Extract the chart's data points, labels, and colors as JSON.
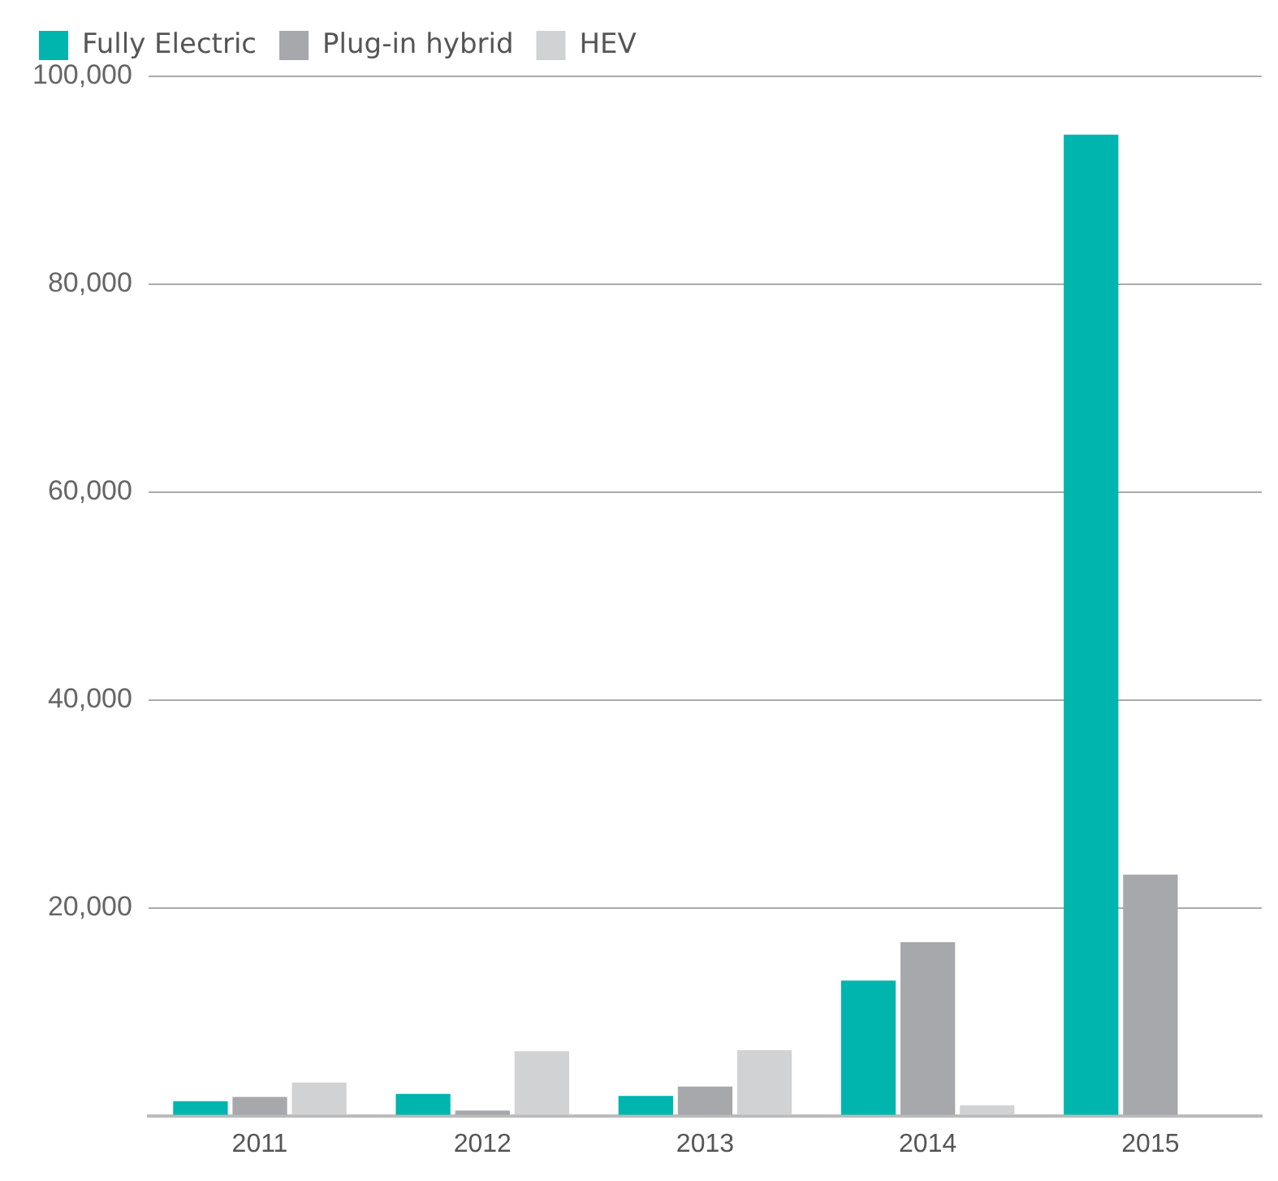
{
  "chart_data": {
    "type": "bar",
    "categories": [
      "2011",
      "2012",
      "2013",
      "2014",
      "2015"
    ],
    "series": [
      {
        "name": "Fully Electric",
        "color": "#00b5ad",
        "values": [
          1400,
          2100,
          1900,
          13000,
          94400
        ]
      },
      {
        "name": "Plug-in hybrid",
        "color": "#a7a8ac",
        "values": [
          1800,
          500,
          2800,
          16700,
          23200
        ]
      },
      {
        "name": "HEV",
        "color": "#d1d2d4",
        "values": [
          3200,
          6200,
          6300,
          1000,
          null
        ]
      }
    ],
    "ylim": [
      0,
      100000
    ],
    "yticks": [
      {
        "value": 0,
        "label": null
      },
      {
        "value": 20000,
        "label": "20,000"
      },
      {
        "value": 40000,
        "label": "40,000"
      },
      {
        "value": 60000,
        "label": "60,000"
      },
      {
        "value": 80000,
        "label": "80,000"
      },
      {
        "value": 100000,
        "label": "100,000"
      }
    ],
    "grid": "y",
    "legend": "top left"
  }
}
